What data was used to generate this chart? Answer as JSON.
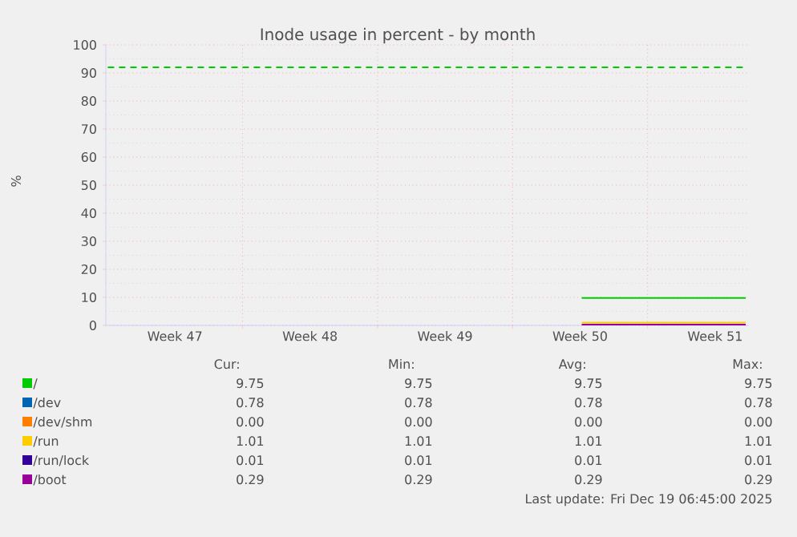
{
  "chart_data": {
    "type": "line",
    "title": "Inode usage in percent - by month",
    "ylabel": "%",
    "xlim": [
      "2025-11-16T22:00",
      "2025-12-20T06:00"
    ],
    "ylim": [
      0,
      100
    ],
    "xticks": [
      {
        "value": "2025-11-20T12:00",
        "label": "Week 47"
      },
      {
        "value": "2025-11-27T12:00",
        "label": "Week 48"
      },
      {
        "value": "2025-12-04T12:00",
        "label": "Week 49"
      },
      {
        "value": "2025-12-11T12:00",
        "label": "Week 50"
      },
      {
        "value": "2025-12-18T12:00",
        "label": "Week 51"
      },
      {
        "value": "2025-11-24",
        "label": null
      },
      {
        "value": "2025-12-01",
        "label": null
      },
      {
        "value": "2025-12-08",
        "label": null
      },
      {
        "value": "2025-12-15",
        "label": null
      }
    ],
    "yticks": [
      0,
      10,
      20,
      30,
      40,
      50,
      60,
      70,
      80,
      90,
      100
    ],
    "grid": true,
    "legend": "bottom",
    "marker": "none",
    "line_style": "solid",
    "x": [
      "2025-12-11T14:00",
      "2025-12-20T02:00"
    ],
    "series": [
      {
        "name": "/",
        "color": "#00cc00",
        "values": [
          9.75,
          9.75
        ]
      },
      {
        "name": "/dev",
        "color": "#0066b3",
        "values": [
          null,
          null
        ]
      },
      {
        "name": "/dev/shm",
        "color": "#ff8000",
        "values": [
          null,
          null
        ]
      },
      {
        "name": "/run",
        "color": "#ffcc00",
        "values": [
          1.01,
          1.01
        ]
      },
      {
        "name": "/run/lock",
        "color": "#330099",
        "values": [
          null,
          null
        ]
      },
      {
        "name": "/boot",
        "color": "#990099",
        "values": [
          0.29,
          0.29
        ]
      }
    ],
    "ref_lines": [
      {
        "axis": "y",
        "value": 92,
        "color": "#00cc00",
        "line_style": "dashed"
      }
    ],
    "annotations": [
      "Cur:",
      "Min:",
      "Avg:",
      "Max:",
      "9.75",
      "9.75",
      "9.75",
      "9.75",
      "0.78",
      "0.78",
      "0.78",
      "0.78",
      "0.00",
      "0.00",
      "0.00",
      "0.00",
      "1.01",
      "1.01",
      "1.01",
      "1.01",
      "0.01",
      "0.01",
      "0.01",
      "0.01",
      "0.29",
      "0.29",
      "0.29",
      "0.29",
      "Last update: Fri Dec 19 06:45:00 2025"
    ]
  }
}
